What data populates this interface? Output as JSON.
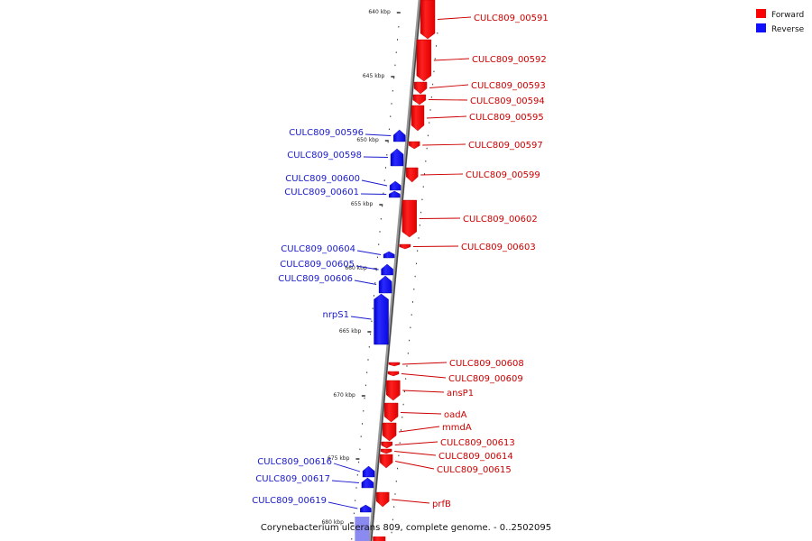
{
  "title": "Corynebacterium ulcerans 809, complete genome. - 0..2502095",
  "colors": {
    "forward": "#ff0000",
    "reverse": "#1010ff",
    "forward_label": "#cc0000",
    "reverse_label": "#1a1acc"
  },
  "legend": [
    {
      "name": "Forward",
      "color": "#ff0000"
    },
    {
      "name": "Reverse",
      "color": "#1010ff"
    }
  ],
  "ticks": [
    "640 kbp",
    "645 kbp",
    "650 kbp",
    "655 kbp",
    "660 kbp",
    "665 kbp",
    "670 kbp",
    "675 kbp",
    "680 kbp"
  ],
  "genes": {
    "forward": [
      "CULC809_00591",
      "CULC809_00592",
      "CULC809_00593",
      "CULC809_00594",
      "CULC809_00595",
      "CULC809_00597",
      "CULC809_00599",
      "CULC809_00602",
      "CULC809_00603",
      "CULC809_00608",
      "CULC809_00609",
      "ansP1",
      "oadA",
      "mmdA",
      "CULC809_00613",
      "CULC809_00614",
      "CULC809_00615",
      "prfB"
    ],
    "reverse": [
      "CULC809_00596",
      "CULC809_00598",
      "CULC809_00600",
      "CULC809_00601",
      "CULC809_00604",
      "CULC809_00605",
      "CULC809_00606",
      "nrpS1",
      "CULC809_00616",
      "CULC809_00617",
      "CULC809_00619"
    ]
  }
}
